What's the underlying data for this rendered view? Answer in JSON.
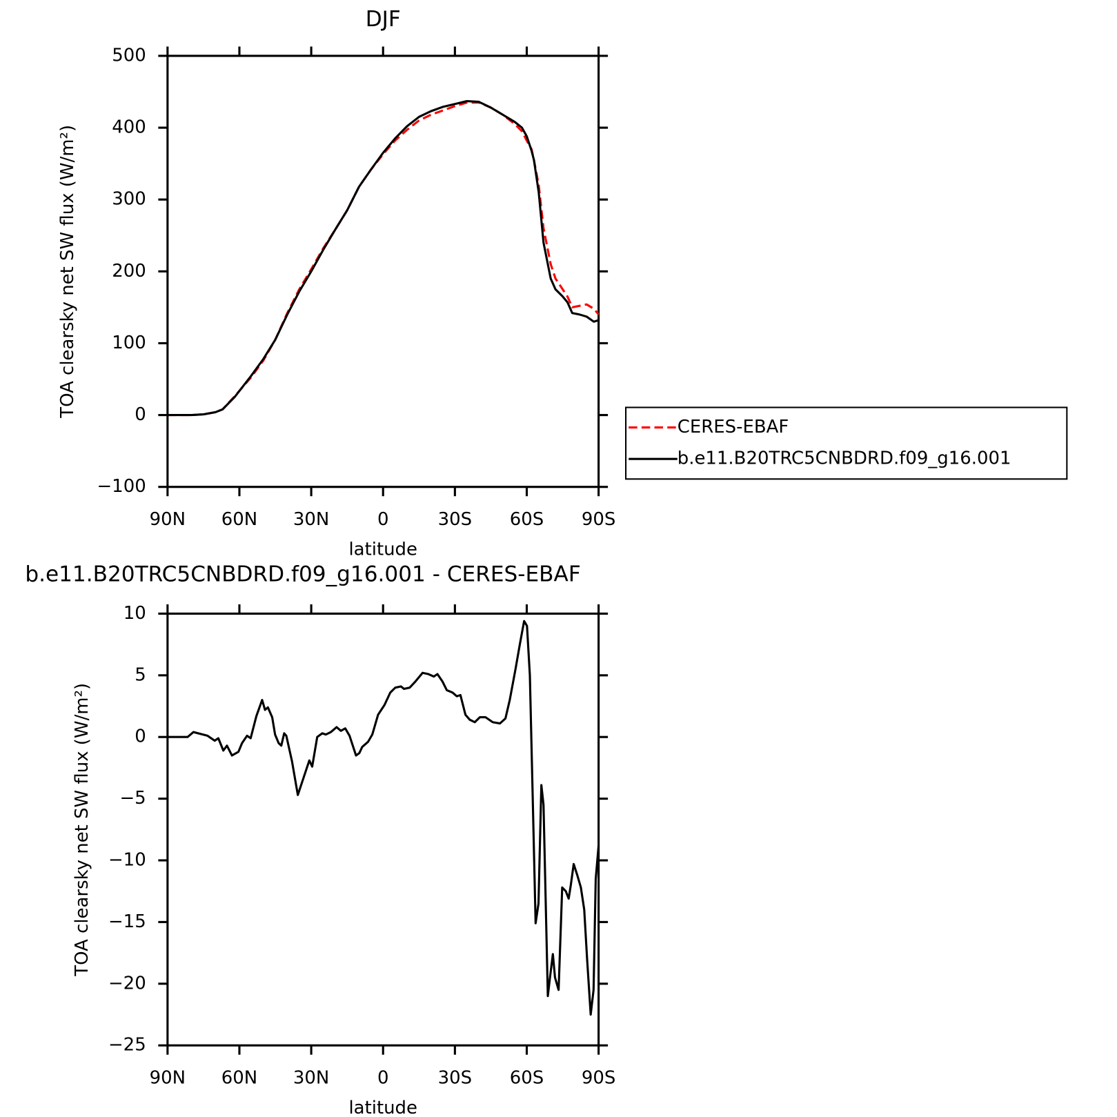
{
  "chart_data": [
    {
      "type": "line",
      "title": "DJF",
      "x_label": "latitude",
      "y_label": "TOA clearsky net SW flux (W/m²)",
      "x": [
        90,
        80,
        75,
        70,
        67,
        62,
        55,
        50,
        45,
        40,
        35,
        30,
        25,
        20,
        15,
        10,
        5,
        0,
        -5,
        -10,
        -15,
        -20,
        -25,
        -30,
        -35,
        -40,
        -45,
        -50,
        -55,
        -58,
        -60,
        -62,
        -63,
        -65,
        -67,
        -70,
        -72,
        -75,
        -77,
        -79,
        -82,
        -85,
        -88,
        -90
      ],
      "series": [
        {
          "name": "CERES-EBAF",
          "color": "#ff0000",
          "line_style": "dashed",
          "values": [
            0,
            0,
            1,
            4,
            8,
            26,
            53,
            76,
            105,
            142,
            175,
            203,
            232,
            258,
            285,
            318,
            342,
            363,
            382,
            397,
            410,
            418,
            424,
            430,
            435,
            435,
            428,
            418,
            405,
            395,
            382,
            370,
            355,
            320,
            260,
            210,
            190,
            175,
            165,
            150,
            152,
            154,
            148,
            140
          ]
        },
        {
          "name": "b.e11.B20TRC5CNBDRD.f09_g16.001",
          "color": "#000000",
          "line_style": "solid",
          "values": [
            0,
            0,
            1,
            4,
            8,
            25,
            55,
            78,
            105,
            140,
            172,
            200,
            230,
            258,
            285,
            318,
            342,
            365,
            385,
            402,
            415,
            423,
            429,
            433,
            437,
            436,
            428,
            418,
            408,
            400,
            388,
            368,
            355,
            310,
            240,
            190,
            175,
            165,
            157,
            142,
            140,
            137,
            130,
            132
          ]
        }
      ],
      "xlim": [
        90,
        -90
      ],
      "xticks": [
        {
          "value": 90,
          "label": "90N"
        },
        {
          "value": 60,
          "label": "60N"
        },
        {
          "value": 30,
          "label": "30N"
        },
        0,
        {
          "value": -30,
          "label": "30S"
        },
        {
          "value": -60,
          "label": "60S"
        },
        {
          "value": -90,
          "label": "90S"
        }
      ],
      "ylim": [
        -100,
        500
      ],
      "yticks": [
        {
          "value": -100,
          "label": "−100"
        },
        0,
        100,
        200,
        300,
        400,
        500
      ],
      "legend": "right"
    },
    {
      "type": "line",
      "title": "b.e11.B20TRC5CNBDRD.f09_g16.001 - CERES-EBAF",
      "x_label": "latitude",
      "y_label": "TOA clearsky net SW flux (W/m²)",
      "x": [
        90,
        81.6,
        79.2,
        73.3,
        70.3,
        68.8,
        66.7,
        65.2,
        63.1,
        60.4,
        58.9,
        56.8,
        55.3,
        52.9,
        50.5,
        49.3,
        48.1,
        46.3,
        45.1,
        43.6,
        42.5,
        41.3,
        40.4,
        38,
        35.6,
        33.2,
        30.8,
        29.6,
        27.5,
        25.4,
        23.9,
        21.8,
        19.4,
        17.6,
        15.8,
        14,
        11.3,
        9.9,
        8.7,
        6.3,
        4.5,
        2.1,
        -0.6,
        -3,
        -5.1,
        -7.5,
        -8.7,
        -11.1,
        -13.5,
        -16.5,
        -18.9,
        -21.2,
        -22.7,
        -24.8,
        -26.6,
        -29,
        -30.8,
        -32.3,
        -34.4,
        -36.2,
        -38.3,
        -40.4,
        -42.8,
        -45.8,
        -48.8,
        -51.1,
        -52.9,
        -55.3,
        -57.1,
        -58.9,
        -60.1,
        -61.3,
        -62.5,
        -63.7,
        -64.9,
        -66.1,
        -67,
        -68.8,
        -69.7,
        -70.9,
        -71.8,
        -73.3,
        -74.8,
        -76.3,
        -77.5,
        -78.4,
        -79.6,
        -81.1,
        -82.6,
        -84,
        -85.2,
        -86.7,
        -87.9,
        -88.8,
        -90
      ],
      "values": [
        0,
        0,
        0.4,
        0.1,
        -0.3,
        -0.1,
        -1.1,
        -0.7,
        -1.5,
        -1.2,
        -0.5,
        0.1,
        -0.1,
        1.7,
        3,
        2.2,
        2.4,
        1.6,
        0.2,
        -0.5,
        -0.7,
        0.3,
        0.1,
        -2,
        -4.7,
        -3.3,
        -1.9,
        -2.4,
        0,
        0.3,
        0.2,
        0.4,
        0.8,
        0.5,
        0.7,
        0.1,
        -1.5,
        -1.3,
        -0.8,
        -0.4,
        0.2,
        1.8,
        2.6,
        3.6,
        4,
        4.1,
        3.9,
        4,
        4.5,
        5.2,
        5.1,
        4.9,
        5.1,
        4.5,
        3.8,
        3.6,
        3.3,
        3.4,
        1.8,
        1.4,
        1.2,
        1.6,
        1.6,
        1.2,
        1.1,
        1.5,
        3,
        5.5,
        7.5,
        9.4,
        9,
        5,
        -5,
        -15.1,
        -13.5,
        -3.9,
        -5.5,
        -21,
        -19.5,
        -17.6,
        -19.5,
        -20.5,
        -12.2,
        -12.5,
        -13.1,
        -12,
        -10.3,
        -11.2,
        -12.2,
        -14,
        -18,
        -22.5,
        -20.5,
        -11.5,
        -8.8
      ],
      "color": "#000000",
      "xlim": [
        90,
        -90
      ],
      "xticks": [
        {
          "value": 90,
          "label": "90N"
        },
        {
          "value": 60,
          "label": "60N"
        },
        {
          "value": 30,
          "label": "30N"
        },
        0,
        {
          "value": -30,
          "label": "30S"
        },
        {
          "value": -60,
          "label": "60S"
        },
        {
          "value": -90,
          "label": "90S"
        }
      ],
      "ylim": [
        -25,
        10
      ],
      "yticks": [
        {
          "value": -25,
          "label": "−25"
        },
        {
          "value": -20,
          "label": "−20"
        },
        {
          "value": -15,
          "label": "−15"
        },
        {
          "value": -10,
          "label": "−10"
        },
        {
          "value": -5,
          "label": "−5"
        },
        0,
        5,
        10
      ]
    }
  ]
}
